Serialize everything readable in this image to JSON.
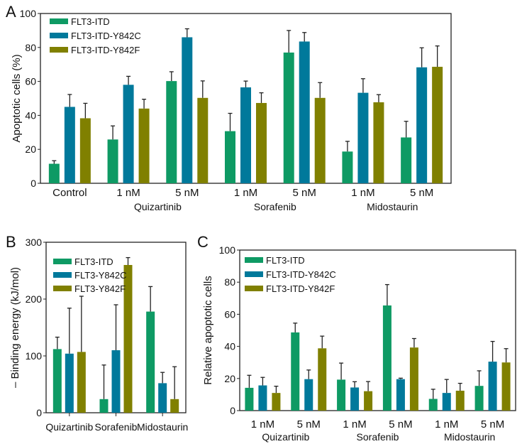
{
  "colors": {
    "itd": "#0e9a64",
    "y842c": "#00799b",
    "y842f": "#808000"
  },
  "chart_data": [
    {
      "panel": "A",
      "type": "bar",
      "ylabel": "Apoptotic cells (%)",
      "ylim": [
        0,
        100
      ],
      "yticks": [
        "0",
        "20",
        "40",
        "60",
        "80",
        "100"
      ],
      "categories": [
        "Control",
        "1 nM",
        "5 nM",
        "1 nM",
        "5 nM",
        "1 nM",
        "5 nM"
      ],
      "groups": [
        {
          "label": "Quizartinib",
          "span": [
            1,
            2
          ]
        },
        {
          "label": "Sorafenib",
          "span": [
            3,
            4
          ]
        },
        {
          "label": "Midostaurin",
          "span": [
            5,
            6
          ]
        }
      ],
      "legend": "top-left",
      "series": [
        {
          "name": "FLT3-ITD",
          "color_key": "itd",
          "values": [
            11.5,
            25.8,
            60.2,
            30.7,
            77,
            18.7,
            27
          ],
          "errors": [
            1.8,
            8,
            5.5,
            10.5,
            13,
            6,
            9.5
          ]
        },
        {
          "name": "FLT3-ITD-Y842C",
          "color_key": "y842c",
          "values": [
            45,
            58,
            86,
            56.5,
            83.5,
            53.3,
            68.3
          ],
          "errors": [
            7.3,
            5,
            5,
            3.7,
            5.3,
            8.3,
            11.5
          ]
        },
        {
          "name": "FLT3-ITD-Y842F",
          "color_key": "y842f",
          "values": [
            38.3,
            44,
            50.3,
            47.3,
            50.3,
            47.7,
            68.6
          ],
          "errors": [
            8.8,
            5.5,
            10,
            6,
            9,
            4.5,
            12.3
          ]
        }
      ]
    },
    {
      "panel": "B",
      "type": "bar",
      "ylabel": "– Binding energy (kJ/mol)",
      "ylim": [
        0,
        300
      ],
      "yticks": [
        "0",
        "100",
        "200",
        "300"
      ],
      "categories": [
        "Quizartinib",
        "Sorafenib",
        "Midostaurin"
      ],
      "groups": [],
      "legend": "top-left",
      "series": [
        {
          "name": "FLT3-ITD",
          "color_key": "itd",
          "values": [
            112,
            24,
            178
          ],
          "errors": [
            21,
            60,
            44
          ]
        },
        {
          "name": "FLT3-Y842C",
          "color_key": "y842c",
          "values": [
            104,
            110,
            52
          ],
          "errors": [
            80,
            80,
            19
          ]
        },
        {
          "name": "FLT3-Y842F",
          "color_key": "y842f",
          "values": [
            107,
            260,
            24
          ],
          "errors": [
            98,
            13,
            57
          ]
        }
      ]
    },
    {
      "panel": "C",
      "type": "bar",
      "ylabel": "Relative apoptotic cells",
      "ylim": [
        0,
        100
      ],
      "yticks": [
        "0",
        "20",
        "40",
        "60",
        "80",
        "100"
      ],
      "categories": [
        "1 nM",
        "5 nM",
        "1 nM",
        "5 nM",
        "1 nM",
        "5 nM"
      ],
      "groups": [
        {
          "label": "Quizartinib",
          "span": [
            0,
            1
          ]
        },
        {
          "label": "Sorafenib",
          "span": [
            2,
            3
          ]
        },
        {
          "label": "Midostaurin",
          "span": [
            4,
            5
          ]
        }
      ],
      "legend": "top-left",
      "series": [
        {
          "name": "FLT3-ITD",
          "color_key": "itd",
          "values": [
            14.2,
            48.7,
            19.3,
            65.5,
            7.3,
            15.4
          ],
          "errors": [
            7.8,
            5.8,
            10.3,
            13,
            6,
            9.4
          ]
        },
        {
          "name": "FLT3-ITD-Y842C",
          "color_key": "y842c",
          "values": [
            15.7,
            19.6,
            14.4,
            19.6,
            11,
            30.5
          ],
          "errors": [
            5,
            5.7,
            3.6,
            0.6,
            8.4,
            12.6
          ]
        },
        {
          "name": "FLT3-ITD-Y842F",
          "color_key": "y842f",
          "values": [
            11,
            38.8,
            12.1,
            39.3,
            12.4,
            30
          ],
          "errors": [
            4.2,
            7.6,
            6,
            5.6,
            4.6,
            8.6
          ]
        }
      ]
    }
  ]
}
